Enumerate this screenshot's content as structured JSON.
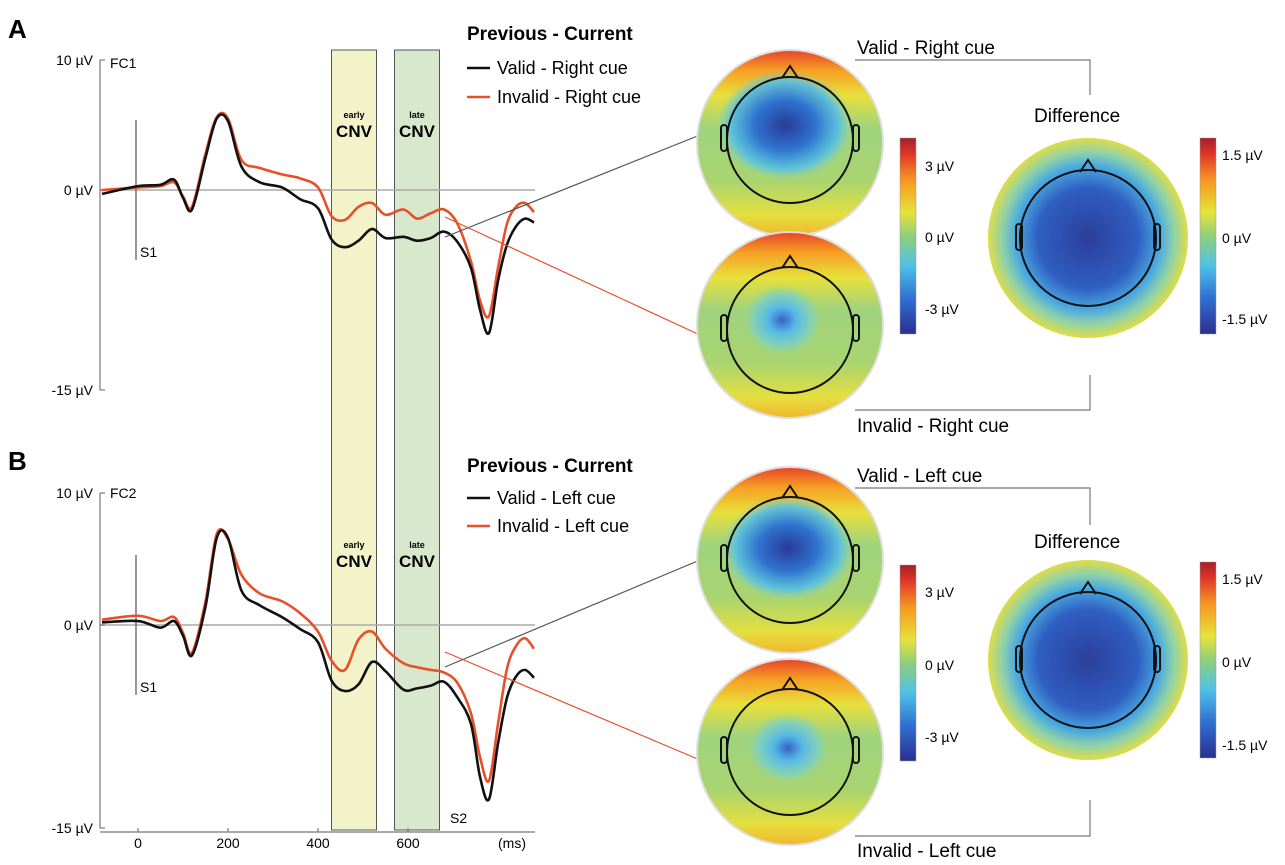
{
  "figure": {
    "panels": [
      {
        "letter": "A",
        "channel": "FC1",
        "legend_title": "Previous - Current",
        "legend_entries": [
          "Valid - Right cue",
          "Invalid - Right cue"
        ],
        "stim_label": "S1",
        "topo_labels": {
          "top": "Valid - Right cue",
          "bottom": "Invalid - Right cue",
          "difference": "Difference"
        },
        "colorbar_left": [
          "3 µV",
          "0 µV",
          "-3 µV"
        ],
        "colorbar_right": [
          "1.5 µV",
          "0 µV",
          "-1.5 µV"
        ]
      },
      {
        "letter": "B",
        "channel": "FC2",
        "legend_title": "Previous - Current",
        "legend_entries": [
          "Valid - Left cue",
          "Invalid - Left cue"
        ],
        "stim_label": "S1",
        "stim2_label": "S2",
        "topo_labels": {
          "top": "Valid - Left cue",
          "bottom": "Invalid - Left cue",
          "difference": "Difference"
        },
        "colorbar_left": [
          "3 µV",
          "0 µV",
          "-3 µV"
        ],
        "colorbar_right": [
          "1.5 µV",
          "0 µV",
          "-1.5 µV"
        ]
      }
    ],
    "windows": [
      {
        "small": "early",
        "big": "CNV"
      },
      {
        "small": "late",
        "big": "CNV"
      }
    ]
  },
  "chart_data": [
    {
      "type": "line",
      "panel": "A",
      "channel": "FC1",
      "ylim": [
        -15,
        10
      ],
      "yticks": [
        "10 µV",
        "0 µV",
        "-15 µV"
      ],
      "xlim": [
        -80,
        880
      ],
      "windows_ms": [
        [
          430,
          530
        ],
        [
          570,
          670
        ]
      ],
      "colors": {
        "valid": "#111111",
        "invalid": "#e8502a"
      },
      "series": [
        {
          "name": "Valid - Right cue",
          "x": [
            -80,
            0,
            50,
            80,
            100,
            120,
            150,
            175,
            200,
            230,
            270,
            320,
            360,
            400,
            430,
            460,
            490,
            520,
            550,
            590,
            620,
            650,
            680,
            710,
            740,
            760,
            780,
            800,
            820,
            840,
            860,
            880
          ],
          "y": [
            -0.3,
            0.3,
            0.4,
            0.8,
            -0.6,
            -1.5,
            2.5,
            5.5,
            5.3,
            1.8,
            0.6,
            0.2,
            -0.7,
            -1.4,
            -3.8,
            -4.4,
            -3.9,
            -3.0,
            -3.7,
            -3.6,
            -3.9,
            -3.7,
            -3.2,
            -4.0,
            -6.0,
            -9.2,
            -11.0,
            -7.0,
            -4.2,
            -2.8,
            -2.2,
            -2.5
          ]
        },
        {
          "name": "Invalid - Right cue",
          "x": [
            -80,
            0,
            50,
            80,
            100,
            120,
            150,
            175,
            200,
            230,
            270,
            320,
            360,
            400,
            430,
            460,
            490,
            520,
            550,
            590,
            620,
            650,
            680,
            710,
            740,
            760,
            780,
            800,
            820,
            840,
            860,
            880
          ],
          "y": [
            0.0,
            0.2,
            0.3,
            0.6,
            -0.5,
            -1.3,
            2.8,
            5.6,
            5.5,
            2.3,
            1.7,
            1.2,
            0.9,
            0.2,
            -2.0,
            -2.3,
            -1.3,
            -1.0,
            -1.9,
            -1.5,
            -2.2,
            -1.8,
            -1.5,
            -2.6,
            -5.5,
            -8.5,
            -9.7,
            -6.0,
            -2.6,
            -1.3,
            -1.0,
            -1.7
          ]
        }
      ]
    },
    {
      "type": "line",
      "panel": "B",
      "channel": "FC2",
      "ylim": [
        -15,
        10
      ],
      "yticks": [
        "10 µV",
        "0 µV",
        "-15 µV"
      ],
      "xlim": [
        -80,
        880
      ],
      "xticks": [
        0,
        200,
        400,
        600
      ],
      "xlabel": "(ms)",
      "windows_ms": [
        [
          430,
          530
        ],
        [
          570,
          670
        ]
      ],
      "colors": {
        "valid": "#111111",
        "invalid": "#e8502a"
      },
      "series": [
        {
          "name": "Valid - Left cue",
          "x": [
            -80,
            0,
            50,
            80,
            100,
            120,
            150,
            175,
            200,
            230,
            270,
            320,
            360,
            400,
            430,
            460,
            490,
            520,
            550,
            590,
            620,
            650,
            680,
            710,
            740,
            760,
            780,
            800,
            820,
            840,
            860,
            880
          ],
          "y": [
            0.2,
            0.3,
            -0.2,
            0.3,
            -0.8,
            -2.3,
            1.4,
            6.6,
            6.6,
            2.6,
            1.5,
            0.6,
            -0.3,
            -1.3,
            -4.2,
            -5.0,
            -4.5,
            -2.8,
            -3.5,
            -4.9,
            -4.8,
            -4.6,
            -4.3,
            -5.5,
            -7.5,
            -11.5,
            -13.2,
            -9.0,
            -5.5,
            -3.9,
            -3.4,
            -4.0
          ]
        },
        {
          "name": "Invalid - Left cue",
          "x": [
            -80,
            0,
            50,
            80,
            100,
            120,
            150,
            175,
            200,
            230,
            270,
            320,
            360,
            400,
            430,
            460,
            490,
            520,
            550,
            590,
            620,
            650,
            680,
            710,
            740,
            760,
            780,
            800,
            820,
            840,
            860,
            880
          ],
          "y": [
            0.4,
            0.7,
            0.3,
            0.6,
            -0.6,
            -2.1,
            1.8,
            6.9,
            6.5,
            3.8,
            2.4,
            1.8,
            0.9,
            -0.5,
            -2.7,
            -3.4,
            -1.1,
            -0.5,
            -1.8,
            -2.9,
            -3.2,
            -3.4,
            -3.6,
            -4.4,
            -6.7,
            -10.0,
            -11.8,
            -7.5,
            -3.3,
            -1.6,
            -1.0,
            -1.8
          ]
        }
      ]
    }
  ]
}
